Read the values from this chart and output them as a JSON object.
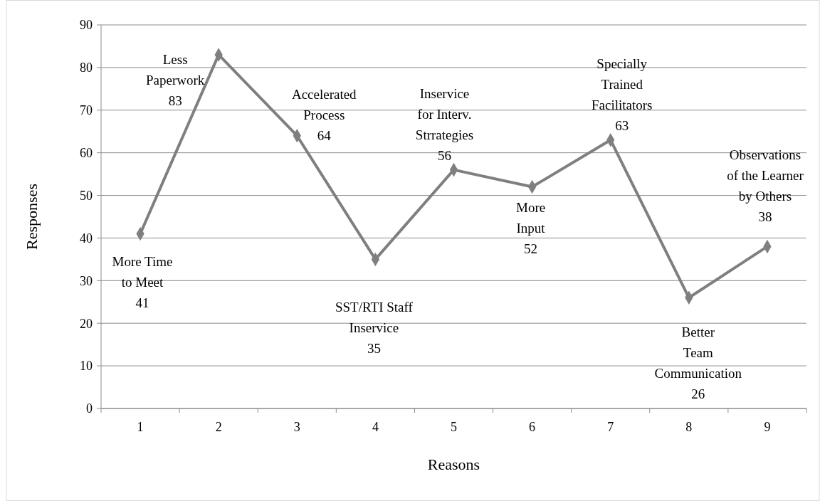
{
  "chart_data": {
    "type": "line",
    "xlabel": "Reasons",
    "ylabel": "Responses",
    "categories": [
      "1",
      "2",
      "3",
      "4",
      "5",
      "6",
      "7",
      "8",
      "9"
    ],
    "series": [
      {
        "color": "#7f7f7f",
        "values": [
          41,
          83,
          64,
          35,
          56,
          52,
          63,
          26,
          38
        ]
      }
    ],
    "ylim": [
      0,
      90
    ],
    "yticks": [
      0,
      10,
      20,
      30,
      40,
      50,
      60,
      70,
      80,
      90
    ],
    "grid": "y",
    "marker": "diamond",
    "line_style": "solid",
    "annotations": [
      {
        "text": "More Time\nto Meet\n41",
        "x": "1",
        "y": 41
      },
      {
        "text": "Less\nPaperwork\n83",
        "x": "2",
        "y": 83
      },
      {
        "text": "Accelerated\nProcess\n64",
        "x": "3",
        "y": 64
      },
      {
        "text": "SST/RTI Staff\nInservice\n35",
        "x": "4",
        "y": 35
      },
      {
        "text": "Inservice\nfor Interv.\nStrrategies\n56",
        "x": "5",
        "y": 56
      },
      {
        "text": "More\nInput\n52",
        "x": "6",
        "y": 52
      },
      {
        "text": "Specially\nTrained\nFacilitators\n63",
        "x": "7",
        "y": 63
      },
      {
        "text": "Better\nTeam\nCommunication\n26",
        "x": "8",
        "y": 26
      },
      {
        "text": "Observations\nof the Learner\nby Others\n38",
        "x": "9",
        "y": 38
      }
    ]
  }
}
